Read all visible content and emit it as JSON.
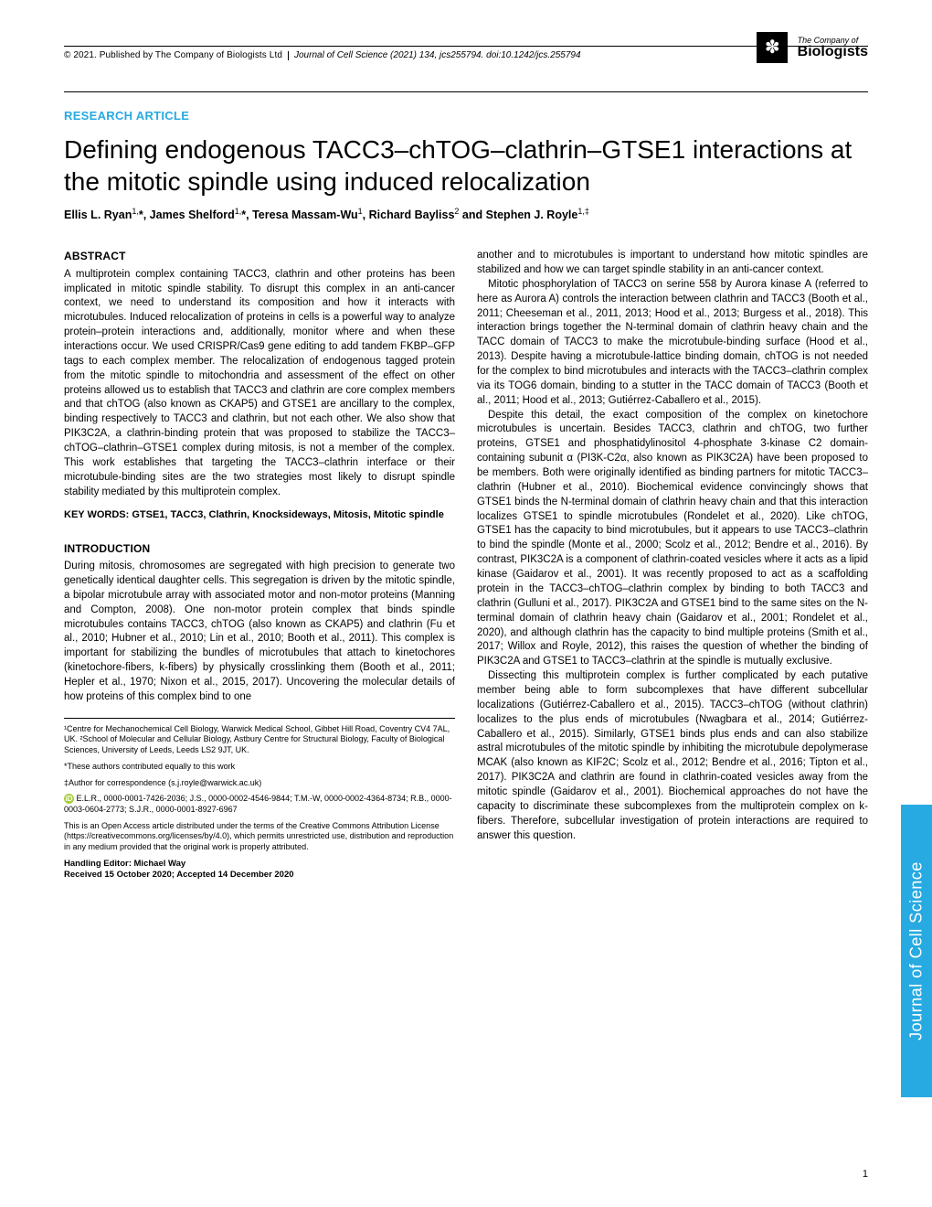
{
  "header": {
    "copyright": "© 2021. Published by The Company of Biologists Ltd",
    "citation": "Journal of Cell Science (2021) 134, jcs255794. doi:10.1242/jcs.255794",
    "logo_line1": "The Company of",
    "logo_line2": "Biologists"
  },
  "article_type": "RESEARCH ARTICLE",
  "title": "Defining endogenous TACC3–chTOG–clathrin–GTSE1 interactions at the mitotic spindle using induced relocalization",
  "authors_html": "Ellis L. Ryan<sup>1,</sup>*, James Shelford<sup>1,</sup>*, Teresa Massam-Wu<sup>1</sup>, Richard Bayliss<sup>2</sup> and Stephen J. Royle<sup>1,‡</sup>",
  "abstract_head": "ABSTRACT",
  "abstract": "A multiprotein complex containing TACC3, clathrin and other proteins has been implicated in mitotic spindle stability. To disrupt this complex in an anti-cancer context, we need to understand its composition and how it interacts with microtubules. Induced relocalization of proteins in cells is a powerful way to analyze protein–protein interactions and, additionally, monitor where and when these interactions occur. We used CRISPR/Cas9 gene editing to add tandem FKBP–GFP tags to each complex member. The relocalization of endogenous tagged protein from the mitotic spindle to mitochondria and assessment of the effect on other proteins allowed us to establish that TACC3 and clathrin are core complex members and that chTOG (also known as CKAP5) and GTSE1 are ancillary to the complex, binding respectively to TACC3 and clathrin, but not each other. We also show that PIK3C2A, a clathrin-binding protein that was proposed to stabilize the TACC3–chTOG–clathrin–GTSE1 complex during mitosis, is not a member of the complex. This work establishes that targeting the TACC3–clathrin interface or their microtubule-binding sites are the two strategies most likely to disrupt spindle stability mediated by this multiprotein complex.",
  "keywords": "KEY WORDS: GTSE1, TACC3, Clathrin, Knocksideways, Mitosis, Mitotic spindle",
  "intro_head": "INTRODUCTION",
  "intro_p1": "During mitosis, chromosomes are segregated with high precision to generate two genetically identical daughter cells. This segregation is driven by the mitotic spindle, a bipolar microtubule array with associated motor and non-motor proteins (Manning and Compton, 2008). One non-motor protein complex that binds spindle microtubules contains TACC3, chTOG (also known as CKAP5) and clathrin (Fu et al., 2010; Hubner et al., 2010; Lin et al., 2010; Booth et al., 2011). This complex is important for stabilizing the bundles of microtubules that attach to kinetochores (kinetochore-fibers, k-fibers) by physically crosslinking them (Booth et al., 2011; Hepler et al., 1970; Nixon et al., 2015, 2017). Uncovering the molecular details of how proteins of this complex bind to one",
  "col2_p0": "another and to microtubules is important to understand how mitotic spindles are stabilized and how we can target spindle stability in an anti-cancer context.",
  "col2_p1": "Mitotic phosphorylation of TACC3 on serine 558 by Aurora kinase A (referred to here as Aurora A) controls the interaction between clathrin and TACC3 (Booth et al., 2011; Cheeseman et al., 2011, 2013; Hood et al., 2013; Burgess et al., 2018). This interaction brings together the N-terminal domain of clathrin heavy chain and the TACC domain of TACC3 to make the microtubule-binding surface (Hood et al., 2013). Despite having a microtubule-lattice binding domain, chTOG is not needed for the complex to bind microtubules and interacts with the TACC3–clathrin complex via its TOG6 domain, binding to a stutter in the TACC domain of TACC3 (Booth et al., 2011; Hood et al., 2013; Gutiérrez-Caballero et al., 2015).",
  "col2_p2": "Despite this detail, the exact composition of the complex on kinetochore microtubules is uncertain. Besides TACC3, clathrin and chTOG, two further proteins, GTSE1 and phosphatidylinositol 4-phosphate 3-kinase C2 domain-containing subunit α (PI3K-C2α, also known as PIK3C2A) have been proposed to be members. Both were originally identified as binding partners for mitotic TACC3–clathrin (Hubner et al., 2010). Biochemical evidence convincingly shows that GTSE1 binds the N-terminal domain of clathrin heavy chain and that this interaction localizes GTSE1 to spindle microtubules (Rondelet et al., 2020). Like chTOG, GTSE1 has the capacity to bind microtubules, but it appears to use TACC3–clathrin to bind the spindle (Monte et al., 2000; Scolz et al., 2012; Bendre et al., 2016). By contrast, PIK3C2A is a component of clathrin-coated vesicles where it acts as a lipid kinase (Gaidarov et al., 2001). It was recently proposed to act as a scaffolding protein in the TACC3–chTOG–clathrin complex by binding to both TACC3 and clathrin (Gulluni et al., 2017). PIK3C2A and GTSE1 bind to the same sites on the N-terminal domain of clathrin heavy chain (Gaidarov et al., 2001; Rondelet et al., 2020), and although clathrin has the capacity to bind multiple proteins (Smith et al., 2017; Willox and Royle, 2012), this raises the question of whether the binding of PIK3C2A and GTSE1 to TACC3–clathrin at the spindle is mutually exclusive.",
  "col2_p3": "Dissecting this multiprotein complex is further complicated by each putative member being able to form subcomplexes that have different subcellular localizations (Gutiérrez-Caballero et al., 2015). TACC3–chTOG (without clathrin) localizes to the plus ends of microtubules (Nwagbara et al., 2014; Gutiérrez-Caballero et al., 2015). Similarly, GTSE1 binds plus ends and can also stabilize astral microtubules of the mitotic spindle by inhibiting the microtubule depolymerase MCAK (also known as KIF2C; Scolz et al., 2012; Bendre et al., 2016; Tipton et al., 2017). PIK3C2A and clathrin are found in clathrin-coated vesicles away from the mitotic spindle (Gaidarov et al., 2001). Biochemical approaches do not have the capacity to discriminate these subcomplexes from the multiprotein complex on k-fibers. Therefore, subcellular investigation of protein interactions are required to answer this question.",
  "affiliations": "¹Centre for Mechanochemical Cell Biology, Warwick Medical School, Gibbet Hill Road, Coventry CV4 7AL, UK. ²School of Molecular and Cellular Biology, Astbury Centre for Structural Biology, Faculty of Biological Sciences, University of Leeds, Leeds LS2 9JT, UK.",
  "equal": "*These authors contributed equally to this work",
  "correspondence": "‡Author for correspondence (s.j.royle@warwick.ac.uk)",
  "orcids": "E.L.R., 0000-0001-7426-2036; J.S., 0000-0002-4546-9844; T.M.-W, 0000-0002-4364-8734; R.B., 0000-0003-0604-2773; S.J.R., 0000-0001-8927-6967",
  "license": "This is an Open Access article distributed under the terms of the Creative Commons Attribution License (https://creativecommons.org/licenses/by/4.0), which permits unrestricted use, distribution and reproduction in any medium provided that the original work is properly attributed.",
  "handling": "Handling Editor: Michael Way",
  "dates": "Received 15 October 2020; Accepted 14 December 2020",
  "side_tab": "Journal of Cell Science",
  "page_number": "1",
  "colors": {
    "accent": "#27aae1",
    "orcid": "#a6ce39",
    "text": "#000000",
    "background": "#ffffff"
  }
}
